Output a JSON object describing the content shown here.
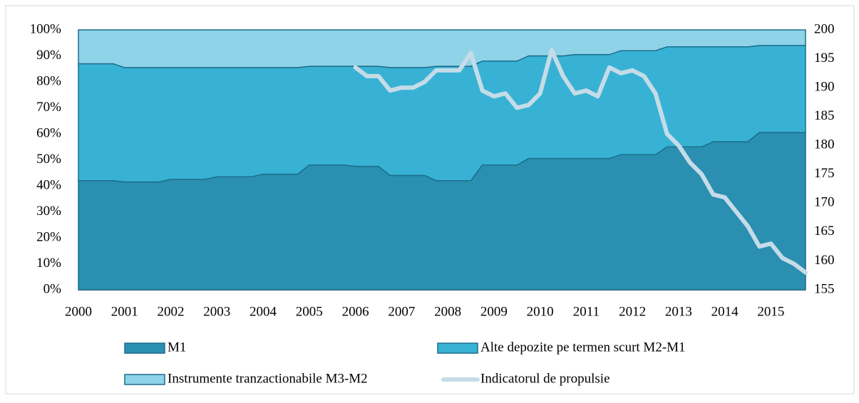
{
  "chart_data": {
    "type": "stacked-area",
    "x": [
      2000,
      2000.25,
      2000.5,
      2000.75,
      2001,
      2001.25,
      2001.5,
      2001.75,
      2002,
      2002.25,
      2002.5,
      2002.75,
      2003,
      2003.25,
      2003.5,
      2003.75,
      2004,
      2004.25,
      2004.5,
      2004.75,
      2005,
      2005.25,
      2005.5,
      2005.75,
      2006,
      2006.25,
      2006.5,
      2006.75,
      2007,
      2007.25,
      2007.5,
      2007.75,
      2008,
      2008.25,
      2008.5,
      2008.75,
      2009,
      2009.25,
      2009.5,
      2009.75,
      2010,
      2010.25,
      2010.5,
      2010.75,
      2011,
      2011.25,
      2011.5,
      2011.75,
      2012,
      2012.25,
      2012.5,
      2012.75,
      2013,
      2013.25,
      2013.5,
      2013.75,
      2014,
      2014.25,
      2014.5,
      2014.75,
      2015,
      2015.25,
      2015.5,
      2015.75
    ],
    "xlim": [
      2000,
      2015.75
    ],
    "xticks": [
      2000,
      2001,
      2002,
      2003,
      2004,
      2005,
      2006,
      2007,
      2008,
      2009,
      2010,
      2011,
      2012,
      2013,
      2014,
      2015
    ],
    "ylim": [
      0,
      100
    ],
    "yticks": [
      {
        "value": 0,
        "label": "0%"
      },
      {
        "value": 10,
        "label": "10%"
      },
      {
        "value": 20,
        "label": "20%"
      },
      {
        "value": 30,
        "label": "30%"
      },
      {
        "value": 40,
        "label": "40%"
      },
      {
        "value": 50,
        "label": "50%"
      },
      {
        "value": 60,
        "label": "60%"
      },
      {
        "value": 70,
        "label": "70%"
      },
      {
        "value": 80,
        "label": "80%"
      },
      {
        "value": 90,
        "label": "90%"
      },
      {
        "value": 100,
        "label": "100%"
      }
    ],
    "y2lim": [
      155,
      200
    ],
    "y2ticks": [
      155,
      160,
      165,
      170,
      175,
      180,
      185,
      190,
      195,
      200
    ],
    "series": [
      {
        "name": "M1",
        "color": "#2a8fb0",
        "values": [
          42,
          42,
          42,
          42,
          41.5,
          41.5,
          41.5,
          41.5,
          42.5,
          42.5,
          42.5,
          42.5,
          43.5,
          43.5,
          43.5,
          43.5,
          44.5,
          44.5,
          44.5,
          44.5,
          48,
          48,
          48,
          48,
          47.5,
          47.5,
          47.5,
          44,
          44,
          44,
          44,
          42,
          42,
          42,
          42,
          48,
          48,
          48,
          48,
          50.5,
          50.5,
          50.5,
          50.5,
          50.5,
          50.5,
          50.5,
          50.5,
          52,
          52,
          52,
          52,
          55,
          55,
          55,
          55,
          57,
          57,
          57,
          57,
          60.5,
          60.5,
          60.5,
          60.5,
          60.5
        ]
      },
      {
        "name": "Alte depozite pe termen scurt M2-M1",
        "color": "#38b2d4",
        "values": [
          45,
          45,
          45,
          45,
          44,
          44,
          44,
          44,
          43,
          43,
          43,
          43,
          42,
          42,
          42,
          42,
          41,
          41,
          41,
          41,
          38,
          38,
          38,
          38,
          38.5,
          38.5,
          38.5,
          41.5,
          41.5,
          41.5,
          41.5,
          44,
          44,
          44,
          44,
          40,
          40,
          40,
          40,
          39.5,
          39.5,
          39.5,
          39.5,
          40,
          40,
          40,
          40,
          40,
          40,
          40,
          40,
          38.5,
          38.5,
          38.5,
          38.5,
          36.5,
          36.5,
          36.5,
          36.5,
          33.5,
          33.5,
          33.5,
          33.5,
          33.5
        ]
      },
      {
        "name": "Instrumente tranzactionabile M3-M2",
        "color": "#8fd3e8",
        "values": [
          13,
          13,
          13,
          13,
          14.5,
          14.5,
          14.5,
          14.5,
          14.5,
          14.5,
          14.5,
          14.5,
          14.5,
          14.5,
          14.5,
          14.5,
          14.5,
          14.5,
          14.5,
          14.5,
          14,
          14,
          14,
          14,
          14,
          14,
          14,
          14.5,
          14.5,
          14.5,
          14.5,
          14,
          14,
          14,
          14,
          12,
          12,
          12,
          12,
          10,
          10,
          10,
          10,
          9.5,
          9.5,
          9.5,
          9.5,
          8,
          8,
          8,
          8,
          6.5,
          6.5,
          6.5,
          6.5,
          6.5,
          6.5,
          6.5,
          6.5,
          6,
          6,
          6,
          6,
          6
        ]
      },
      {
        "name": "Indicatorul de propulsie",
        "color": "#c5dce8",
        "axis": "y2",
        "kind": "line",
        "values": [
          null,
          null,
          null,
          null,
          null,
          null,
          null,
          null,
          null,
          null,
          null,
          null,
          null,
          null,
          null,
          null,
          null,
          null,
          null,
          null,
          null,
          null,
          null,
          null,
          193.5,
          192,
          192,
          189.5,
          190,
          190,
          191,
          193,
          193,
          193,
          196,
          189.5,
          188.5,
          189,
          186.5,
          187,
          189,
          196.5,
          192,
          189,
          189.5,
          188.5,
          193.5,
          192.5,
          193,
          192,
          189,
          182,
          180,
          177,
          175,
          171.5,
          171,
          168.5,
          166,
          162.5,
          163,
          160.5,
          159.5,
          158
        ]
      }
    ]
  }
}
